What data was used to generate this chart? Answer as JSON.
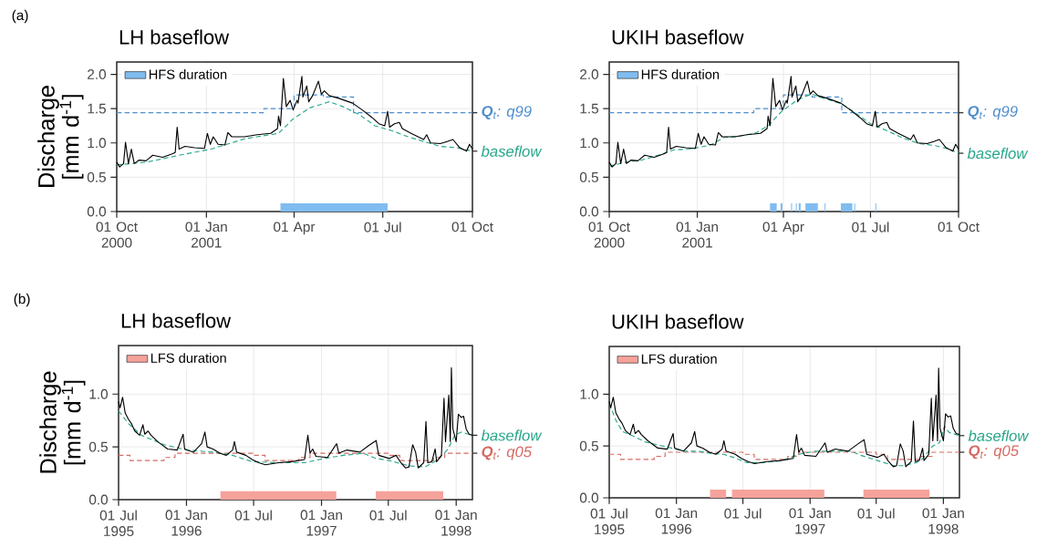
{
  "chart_data": [
    {
      "type": "line",
      "title": "LH baseflow",
      "ylabel": "Discharge [mm d$^{-1}$]",
      "annotations": [
        "(a)"
      ],
      "grid": true,
      "legend": "top left",
      "xlim": [
        "2000-10-01",
        "2001-10-01"
      ],
      "ylim": [
        0,
        2.18
      ],
      "xticks": [
        {
          "value": "2000-10-01",
          "label": "01 Oct 2000"
        },
        {
          "value": "2001-01-01",
          "label": "01 Jan 2001"
        },
        {
          "value": "2001-04-01",
          "label": "01 Apr"
        },
        {
          "value": "2001-07-01",
          "label": "01 Jul"
        },
        {
          "value": "2001-10-01",
          "label": "01 Oct"
        }
      ],
      "yticks": [
        {
          "value": 0,
          "label": "0.0"
        },
        {
          "value": 0.5,
          "label": "0.5"
        },
        {
          "value": 1,
          "label": "1.0"
        },
        {
          "value": 1.5,
          "label": "1.5"
        },
        {
          "value": 2,
          "label": "2.0"
        }
      ],
      "series": [
        {
          "name": "HFS duration",
          "type": "area",
          "color": "#80bcf0",
          "x": [
            "2001-03-18",
            "2001-03-18",
            "2001-07-06",
            "2001-07-06"
          ],
          "values": [
            0,
            0.12,
            0.12,
            0
          ]
        },
        {
          "name": "**Q**$_{t}$: q99",
          "type": "step",
          "line_style": "dashed",
          "color": "#4f8fcc",
          "x": [
            "2000-10-01",
            "2001-03-01",
            "2001-04-01",
            "2001-05-01",
            "2001-06-01",
            "2001-10-01"
          ],
          "values": [
            1.44,
            1.5,
            1.7,
            1.67,
            1.44,
            1.44
          ]
        },
        {
          "name": "baseflow",
          "type": "line",
          "line_style": "dashed",
          "color": "#26a68a",
          "x": [
            "2000-10-01",
            "2000-11-01",
            "2000-12-04",
            "2001-01-06",
            "2001-02-09",
            "2001-03-16",
            "2001-03-31",
            "2001-04-17",
            "2001-05-07",
            "2001-05-21",
            "2001-06-07",
            "2001-06-23",
            "2001-07-10",
            "2001-07-27",
            "2001-08-12",
            "2001-08-29",
            "2001-09-15",
            "2001-10-01"
          ],
          "values": [
            0.68,
            0.72,
            0.82,
            0.91,
            1.06,
            1.14,
            1.35,
            1.51,
            1.6,
            1.53,
            1.41,
            1.25,
            1.18,
            1.09,
            1.02,
            0.95,
            0.93,
            0.88
          ]
        },
        {
          "line_style": "solid",
          "color": "#000000",
          "x": [
            "2000-10-01",
            "2000-10-04",
            "2000-10-08",
            "2000-10-10",
            "2000-10-13",
            "2000-10-16",
            "2000-10-19",
            "2000-10-24",
            "2000-10-31",
            "2000-11-07",
            "2000-11-17",
            "2000-11-27",
            "2000-11-30",
            "2000-12-02",
            "2000-12-04",
            "2000-12-10",
            "2000-12-20",
            "2000-12-30",
            "2001-01-02",
            "2001-01-05",
            "2001-01-08",
            "2001-01-13",
            "2001-01-20",
            "2001-01-23",
            "2001-01-27",
            "2001-02-09",
            "2001-02-22",
            "2001-03-08",
            "2001-03-15",
            "2001-03-16",
            "2001-03-18",
            "2001-03-19",
            "2001-03-21",
            "2001-03-24",
            "2001-03-28",
            "2001-03-31",
            "2001-04-04",
            "2001-04-05",
            "2001-04-09",
            "2001-04-10",
            "2001-04-14",
            "2001-04-16",
            "2001-04-20",
            "2001-04-26",
            "2001-04-29",
            "2001-05-02",
            "2001-05-07",
            "2001-05-17",
            "2001-05-31",
            "2001-06-10",
            "2001-06-20",
            "2001-06-27",
            "2001-07-03",
            "2001-07-06",
            "2001-07-08",
            "2001-07-13",
            "2001-07-18",
            "2001-07-21",
            "2001-07-30",
            "2001-08-12",
            "2001-08-15",
            "2001-08-19",
            "2001-08-29",
            "2001-09-05",
            "2001-09-11",
            "2001-09-18",
            "2001-09-25",
            "2001-09-28",
            "2001-10-01"
          ],
          "values": [
            0.72,
            0.65,
            0.7,
            1.01,
            0.7,
            0.91,
            0.7,
            0.75,
            0.74,
            0.82,
            0.79,
            0.84,
            0.86,
            1.23,
            0.91,
            0.95,
            0.93,
            0.92,
            1.14,
            0.98,
            1.09,
            0.98,
            0.97,
            1.15,
            1.09,
            1.09,
            1.12,
            1.14,
            1.21,
            1.39,
            1.25,
            1.48,
            1.94,
            1.53,
            1.62,
            1.48,
            1.62,
            1.58,
            1.97,
            1.67,
            1.83,
            1.6,
            1.69,
            1.9,
            1.71,
            1.76,
            1.69,
            1.65,
            1.58,
            1.48,
            1.37,
            1.28,
            1.25,
            1.46,
            1.23,
            1.28,
            1.3,
            1.21,
            1.14,
            1.05,
            1.12,
            1.0,
            0.99,
            1.02,
            1.05,
            0.93,
            0.88,
            0.98,
            0.91
          ]
        }
      ]
    },
    {
      "type": "line",
      "title": "UKIH baseflow",
      "grid": true,
      "legend": "top left",
      "xlim": [
        "2000-10-01",
        "2001-10-01"
      ],
      "ylim": [
        0,
        2.18
      ],
      "xticks": [
        {
          "value": "2000-10-01",
          "label": "01 Oct 2000"
        },
        {
          "value": "2001-01-01",
          "label": "01 Jan 2001"
        },
        {
          "value": "2001-04-01",
          "label": "01 Apr"
        },
        {
          "value": "2001-07-01",
          "label": "01 Jul"
        },
        {
          "value": "2001-10-01",
          "label": "01 Oct"
        }
      ],
      "yticks": [
        {
          "value": 0,
          "label": "0.0"
        },
        {
          "value": 0.5,
          "label": "0.5"
        },
        {
          "value": 1,
          "label": "1.0"
        },
        {
          "value": 1.5,
          "label": "1.5"
        },
        {
          "value": 2,
          "label": "2.0"
        }
      ],
      "series": [
        {
          "name": "HFS duration",
          "type": "area",
          "color": "#80bcf0",
          "x": [
            "2001-03-18",
            "2001-03-18",
            "2001-03-25",
            "2001-03-25",
            "2001-03-29",
            "2001-03-29",
            "2001-03-31",
            "2001-03-31",
            "2001-04-09",
            "2001-04-09",
            "2001-04-10",
            "2001-04-10",
            "2001-04-14",
            "2001-04-14",
            "2001-04-15",
            "2001-04-15",
            "2001-04-17",
            "2001-04-17",
            "2001-04-19",
            "2001-04-19",
            "2001-04-24",
            "2001-04-24",
            "2001-05-07",
            "2001-05-07",
            "2001-05-14",
            "2001-05-14",
            "2001-05-15",
            "2001-05-15",
            "2001-05-31",
            "2001-05-31",
            "2001-06-12",
            "2001-06-12",
            "2001-06-14",
            "2001-06-14",
            "2001-06-15",
            "2001-06-15",
            "2001-07-06",
            "2001-07-06",
            "2001-07-07",
            "2001-07-07"
          ],
          "values": [
            0,
            0.12,
            0.12,
            0,
            0,
            0.12,
            0.12,
            0,
            0,
            0.12,
            0.12,
            0,
            0,
            0.12,
            0.12,
            0,
            0,
            0.12,
            0.12,
            0,
            0,
            0.12,
            0.12,
            0,
            0,
            0.12,
            0.12,
            0,
            0,
            0.12,
            0.12,
            0,
            0,
            0.12,
            0.12,
            0,
            0,
            0.12,
            0.12,
            0
          ]
        },
        {
          "name": "**Q**$_{t}$: q99",
          "type": "step",
          "line_style": "dashed",
          "color": "#4f8fcc",
          "x": [
            "2000-10-01",
            "2001-03-01",
            "2001-04-01",
            "2001-05-01",
            "2001-06-01",
            "2001-10-01"
          ],
          "values": [
            1.44,
            1.5,
            1.7,
            1.67,
            1.44,
            1.44
          ]
        },
        {
          "name": "baseflow",
          "type": "line",
          "line_style": "dashed",
          "color": "#26a68a",
          "x": [
            "2000-10-01",
            "2000-10-18",
            "2000-11-04",
            "2000-11-21",
            "2000-12-08",
            "2000-12-25",
            "2001-01-15",
            "2001-01-29",
            "2001-02-15",
            "2001-03-04",
            "2001-03-17",
            "2001-03-24",
            "2001-03-31",
            "2001-04-07",
            "2001-04-14",
            "2001-04-24",
            "2001-05-01",
            "2001-05-11",
            "2001-06-01",
            "2001-06-14",
            "2001-07-01",
            "2001-07-18",
            "2001-08-04",
            "2001-08-21",
            "2001-09-07",
            "2001-09-21",
            "2001-10-01"
          ],
          "values": [
            0.66,
            0.72,
            0.75,
            0.82,
            0.9,
            0.91,
            0.97,
            1.08,
            1.1,
            1.15,
            1.26,
            1.37,
            1.47,
            1.54,
            1.61,
            1.68,
            1.71,
            1.66,
            1.57,
            1.45,
            1.28,
            1.18,
            1.07,
            0.99,
            0.96,
            0.91,
            0.85
          ]
        },
        {
          "type": "line",
          "line_style": "solid",
          "color": "#000000",
          "x": [
            "2000-10-01",
            "2000-10-04",
            "2000-10-08",
            "2000-10-10",
            "2000-10-13",
            "2000-10-16",
            "2000-10-19",
            "2000-10-24",
            "2000-10-31",
            "2000-11-07",
            "2000-11-17",
            "2000-11-27",
            "2000-11-30",
            "2000-12-02",
            "2000-12-04",
            "2000-12-10",
            "2000-12-20",
            "2000-12-30",
            "2001-01-02",
            "2001-01-05",
            "2001-01-08",
            "2001-01-13",
            "2001-01-20",
            "2001-01-23",
            "2001-01-27",
            "2001-02-09",
            "2001-02-22",
            "2001-03-08",
            "2001-03-15",
            "2001-03-16",
            "2001-03-18",
            "2001-03-19",
            "2001-03-21",
            "2001-03-24",
            "2001-03-28",
            "2001-03-31",
            "2001-04-04",
            "2001-04-05",
            "2001-04-09",
            "2001-04-10",
            "2001-04-14",
            "2001-04-16",
            "2001-04-20",
            "2001-04-26",
            "2001-04-29",
            "2001-05-02",
            "2001-05-07",
            "2001-05-17",
            "2001-05-31",
            "2001-06-10",
            "2001-06-20",
            "2001-06-27",
            "2001-07-03",
            "2001-07-06",
            "2001-07-08",
            "2001-07-13",
            "2001-07-18",
            "2001-07-21",
            "2001-07-30",
            "2001-08-12",
            "2001-08-15",
            "2001-08-19",
            "2001-08-29",
            "2001-09-05",
            "2001-09-11",
            "2001-09-18",
            "2001-09-25",
            "2001-09-28",
            "2001-10-01"
          ],
          "values": [
            0.72,
            0.65,
            0.7,
            1.01,
            0.7,
            0.91,
            0.7,
            0.75,
            0.74,
            0.82,
            0.79,
            0.84,
            0.86,
            1.23,
            0.91,
            0.95,
            0.93,
            0.92,
            1.14,
            0.98,
            1.09,
            0.98,
            0.97,
            1.15,
            1.09,
            1.09,
            1.12,
            1.14,
            1.21,
            1.39,
            1.25,
            1.48,
            1.94,
            1.53,
            1.62,
            1.48,
            1.62,
            1.58,
            1.97,
            1.67,
            1.83,
            1.6,
            1.69,
            1.9,
            1.71,
            1.76,
            1.69,
            1.65,
            1.58,
            1.48,
            1.37,
            1.28,
            1.25,
            1.46,
            1.23,
            1.28,
            1.3,
            1.21,
            1.14,
            1.05,
            1.12,
            1.0,
            0.99,
            1.02,
            1.05,
            0.93,
            0.88,
            0.98,
            0.91
          ]
        }
      ]
    },
    {
      "type": "line",
      "title": "LH baseflow",
      "ylabel": "Discharge [mm d$^{-1}$]",
      "annotations": [
        "(b)"
      ],
      "grid": true,
      "legend": "top left",
      "xlim": [
        "1995-07-01",
        "1998-02-14"
      ],
      "ylim": [
        0,
        1.46
      ],
      "xticks": [
        {
          "value": "1995-07-01",
          "label": "01 Jul 1995"
        },
        {
          "value": "1996-01-01",
          "label": "01 Jan 1996"
        },
        {
          "value": "1996-07-01",
          "label": "01 Jul"
        },
        {
          "value": "1997-01-01",
          "label": "01 Jan 1997"
        },
        {
          "value": "1997-07-01",
          "label": "01 Jul"
        },
        {
          "value": "1998-01-01",
          "label": "01 Jan 1998"
        }
      ],
      "yticks": [
        {
          "value": 0,
          "label": "0.0"
        },
        {
          "value": 0.5,
          "label": "0.5"
        },
        {
          "value": 1,
          "label": "1.0"
        }
      ],
      "series": [
        {
          "name": "LFS duration",
          "type": "area",
          "color": "#f5a29b",
          "x": [
            "1996-04-02",
            "1996-04-02",
            "1997-02-10",
            "1997-02-10",
            "1997-05-28",
            "1997-05-28",
            "1997-11-27",
            "1997-11-27"
          ],
          "values": [
            0,
            0.08,
            0.08,
            0,
            0,
            0.08,
            0.08,
            0
          ]
        },
        {
          "name": "**Q**$_{t}$: q05",
          "type": "step",
          "line_style": "dashed",
          "color": "#d46a62",
          "x": [
            "1995-07-01",
            "1995-08-01",
            "1995-11-01",
            "1995-12-01",
            "1996-07-01",
            "1996-08-01",
            "1996-11-01",
            "1996-12-01",
            "1997-07-01",
            "1997-08-01",
            "1997-11-01",
            "1997-12-01",
            "1998-02-14"
          ],
          "values": [
            0.42,
            0.37,
            0.4,
            0.44,
            0.42,
            0.37,
            0.4,
            0.44,
            0.42,
            0.37,
            0.4,
            0.44,
            0.44
          ]
        },
        {
          "name": "baseflow",
          "type": "line",
          "line_style": "dashed",
          "color": "#26a68a",
          "x": [
            "1995-07-01",
            "1995-07-28",
            "1995-09-01",
            "1995-11-02",
            "1996-01-03",
            "1996-03-13",
            "1996-05-05",
            "1996-06-27",
            "1996-09-06",
            "1996-11-16",
            "1997-01-08",
            "1997-03-02",
            "1997-04-24",
            "1997-05-29",
            "1997-07-04",
            "1997-08-26",
            "1997-10-09",
            "1997-11-13",
            "1997-12-10",
            "1997-12-28",
            "1998-01-14",
            "1998-02-14"
          ],
          "values": [
            0.84,
            0.72,
            0.61,
            0.52,
            0.47,
            0.45,
            0.42,
            0.36,
            0.35,
            0.35,
            0.39,
            0.42,
            0.44,
            0.39,
            0.37,
            0.32,
            0.31,
            0.38,
            0.48,
            0.61,
            0.64,
            0.61
          ]
        },
        {
          "type": "line",
          "line_style": "solid",
          "color": "#000000",
          "x": [
            "1995-07-01",
            "1995-07-05",
            "1995-07-12",
            "1995-07-19",
            "1995-07-28",
            "1995-08-05",
            "1995-08-14",
            "1995-08-27",
            "1995-09-05",
            "1995-09-10",
            "1995-09-19",
            "1995-09-27",
            "1995-10-15",
            "1995-11-11",
            "1995-12-07",
            "1995-12-23",
            "1995-12-27",
            "1996-01-20",
            "1996-02-11",
            "1996-02-20",
            "1996-02-26",
            "1996-03-13",
            "1996-03-31",
            "1996-04-18",
            "1996-05-05",
            "1996-05-10",
            "1996-05-16",
            "1996-06-10",
            "1996-06-27",
            "1996-07-15",
            "1996-08-02",
            "1996-09-06",
            "1996-10-12",
            "1996-11-16",
            "1996-11-25",
            "1996-12-01",
            "1996-12-08",
            "1996-12-17",
            "1997-01-17",
            "1997-02-11",
            "1997-02-17",
            "1997-03-11",
            "1997-04-15",
            "1997-05-12",
            "1997-05-29",
            "1997-06-05",
            "1997-07-04",
            "1997-07-22",
            "1997-08-04",
            "1997-08-17",
            "1997-08-26",
            "1997-09-05",
            "1997-09-13",
            "1997-09-20",
            "1997-10-05",
            "1997-10-11",
            "1997-10-16",
            "1997-10-27",
            "1997-11-05",
            "1997-11-09",
            "1997-11-22",
            "1997-11-29",
            "1997-12-03",
            "1997-12-12",
            "1997-12-16",
            "1997-12-19",
            "1997-12-23",
            "1998-01-01",
            "1998-01-07",
            "1998-01-14",
            "1998-01-21",
            "1998-01-28",
            "1998-02-05",
            "1998-02-14"
          ],
          "values": [
            0.93,
            0.87,
            0.97,
            0.82,
            0.76,
            0.72,
            0.65,
            0.61,
            0.71,
            0.62,
            0.65,
            0.61,
            0.55,
            0.48,
            0.47,
            0.62,
            0.48,
            0.45,
            0.53,
            0.64,
            0.5,
            0.48,
            0.44,
            0.42,
            0.47,
            0.55,
            0.45,
            0.42,
            0.38,
            0.35,
            0.33,
            0.35,
            0.36,
            0.38,
            0.61,
            0.44,
            0.48,
            0.41,
            0.4,
            0.53,
            0.44,
            0.47,
            0.45,
            0.52,
            0.56,
            0.42,
            0.39,
            0.42,
            0.35,
            0.3,
            0.31,
            0.52,
            0.45,
            0.3,
            0.35,
            0.74,
            0.35,
            0.36,
            0.48,
            0.36,
            0.42,
            0.96,
            0.55,
            0.99,
            0.55,
            1.25,
            0.67,
            0.55,
            0.81,
            0.78,
            0.79,
            0.67,
            0.62,
            0.61
          ]
        }
      ]
    },
    {
      "type": "line",
      "title": "UKIH baseflow",
      "grid": true,
      "legend": "top left",
      "xlim": [
        "1995-07-01",
        "1998-02-14"
      ],
      "ylim": [
        0,
        1.46
      ],
      "xticks": [
        {
          "value": "1995-07-01",
          "label": "01 Jul 1995"
        },
        {
          "value": "1996-01-01",
          "label": "01 Jan 1996"
        },
        {
          "value": "1996-07-01",
          "label": "01 Jul"
        },
        {
          "value": "1997-01-01",
          "label": "01 Jan 1997"
        },
        {
          "value": "1997-07-01",
          "label": "01 Jul"
        },
        {
          "value": "1998-01-01",
          "label": "01 Jan 1998"
        }
      ],
      "yticks": [
        {
          "value": 0,
          "label": "0.0"
        },
        {
          "value": 0.5,
          "label": "0.5"
        },
        {
          "value": 1,
          "label": "1.0"
        }
      ],
      "series": [
        {
          "name": "LFS duration",
          "type": "area",
          "color": "#f5a29b",
          "x": [
            "1996-04-02",
            "1996-04-02",
            "1996-05-16",
            "1996-05-16",
            "1996-06-01",
            "1996-06-01",
            "1997-02-09",
            "1997-02-09",
            "1997-05-27",
            "1997-05-27",
            "1997-11-24",
            "1997-11-24"
          ],
          "values": [
            0,
            0.08,
            0.08,
            0,
            0,
            0.08,
            0.08,
            0,
            0,
            0.08,
            0.08,
            0
          ]
        },
        {
          "name": "**Q**$_{t}$: q05",
          "type": "step",
          "line_style": "dashed",
          "color": "#d46a62",
          "x": [
            "1995-07-01",
            "1995-08-01",
            "1995-11-01",
            "1995-12-01",
            "1996-07-01",
            "1996-08-01",
            "1996-11-01",
            "1996-12-01",
            "1997-07-01",
            "1997-08-01",
            "1997-11-01",
            "1997-12-01",
            "1998-02-14"
          ],
          "values": [
            0.42,
            0.37,
            0.4,
            0.44,
            0.42,
            0.37,
            0.4,
            0.44,
            0.42,
            0.37,
            0.4,
            0.44,
            0.44
          ]
        },
        {
          "name": "baseflow",
          "type": "line",
          "line_style": "dashed",
          "color": "#26a68a",
          "x": [
            "1995-07-01",
            "1995-07-19",
            "1995-08-06",
            "1995-09-02",
            "1995-10-07",
            "1995-11-12",
            "1995-12-18",
            "1996-01-23",
            "1996-02-28",
            "1996-04-04",
            "1996-05-09",
            "1996-06-05",
            "1996-07-11",
            "1996-08-25",
            "1996-10-17",
            "1996-12-01",
            "1997-01-15",
            "1997-03-10",
            "1997-04-23",
            "1997-05-20",
            "1997-06-25",
            "1997-07-31",
            "1997-08-18",
            "1997-09-14",
            "1997-10-20",
            "1997-11-06",
            "1997-12-03",
            "1997-12-21",
            "1998-01-04",
            "1998-01-17",
            "1998-02-14"
          ],
          "values": [
            0.91,
            0.75,
            0.64,
            0.6,
            0.54,
            0.51,
            0.48,
            0.45,
            0.45,
            0.43,
            0.42,
            0.39,
            0.34,
            0.34,
            0.36,
            0.42,
            0.45,
            0.45,
            0.45,
            0.41,
            0.37,
            0.33,
            0.31,
            0.31,
            0.34,
            0.38,
            0.5,
            0.53,
            0.69,
            0.63,
            0.6
          ]
        },
        {
          "type": "line",
          "line_style": "solid",
          "color": "#000000",
          "x": [
            "1995-07-01",
            "1995-07-05",
            "1995-07-12",
            "1995-07-19",
            "1995-07-28",
            "1995-08-05",
            "1995-08-14",
            "1995-08-27",
            "1995-09-05",
            "1995-09-10",
            "1995-09-19",
            "1995-09-27",
            "1995-10-15",
            "1995-11-11",
            "1995-12-07",
            "1995-12-23",
            "1995-12-27",
            "1996-01-20",
            "1996-02-11",
            "1996-02-20",
            "1996-02-26",
            "1996-03-13",
            "1996-03-31",
            "1996-04-18",
            "1996-05-05",
            "1996-05-10",
            "1996-05-16",
            "1996-06-10",
            "1996-06-27",
            "1996-07-15",
            "1996-08-02",
            "1996-09-06",
            "1996-10-12",
            "1996-11-16",
            "1996-11-25",
            "1996-12-01",
            "1996-12-08",
            "1996-12-17",
            "1997-01-17",
            "1997-02-11",
            "1997-02-17",
            "1997-03-11",
            "1997-04-15",
            "1997-05-12",
            "1997-05-29",
            "1997-06-05",
            "1997-07-04",
            "1997-07-22",
            "1997-08-04",
            "1997-08-17",
            "1997-08-26",
            "1997-09-05",
            "1997-09-13",
            "1997-09-20",
            "1997-10-05",
            "1997-10-11",
            "1997-10-16",
            "1997-10-27",
            "1997-11-05",
            "1997-11-09",
            "1997-11-22",
            "1997-11-29",
            "1997-12-03",
            "1997-12-12",
            "1997-12-16",
            "1997-12-19",
            "1997-12-23",
            "1998-01-01",
            "1998-01-07",
            "1998-01-14",
            "1998-01-21",
            "1998-01-28",
            "1998-02-05",
            "1998-02-14"
          ],
          "values": [
            0.93,
            0.87,
            0.97,
            0.82,
            0.76,
            0.72,
            0.65,
            0.61,
            0.71,
            0.62,
            0.65,
            0.61,
            0.55,
            0.48,
            0.47,
            0.62,
            0.48,
            0.45,
            0.53,
            0.64,
            0.5,
            0.48,
            0.44,
            0.42,
            0.47,
            0.55,
            0.45,
            0.42,
            0.38,
            0.35,
            0.33,
            0.35,
            0.36,
            0.38,
            0.61,
            0.44,
            0.48,
            0.41,
            0.4,
            0.53,
            0.44,
            0.47,
            0.45,
            0.52,
            0.56,
            0.42,
            0.39,
            0.42,
            0.35,
            0.3,
            0.31,
            0.52,
            0.45,
            0.3,
            0.35,
            0.74,
            0.35,
            0.36,
            0.48,
            0.36,
            0.42,
            0.96,
            0.55,
            0.99,
            0.55,
            1.25,
            0.67,
            0.55,
            0.81,
            0.78,
            0.79,
            0.67,
            0.62,
            0.61
          ]
        }
      ]
    }
  ]
}
